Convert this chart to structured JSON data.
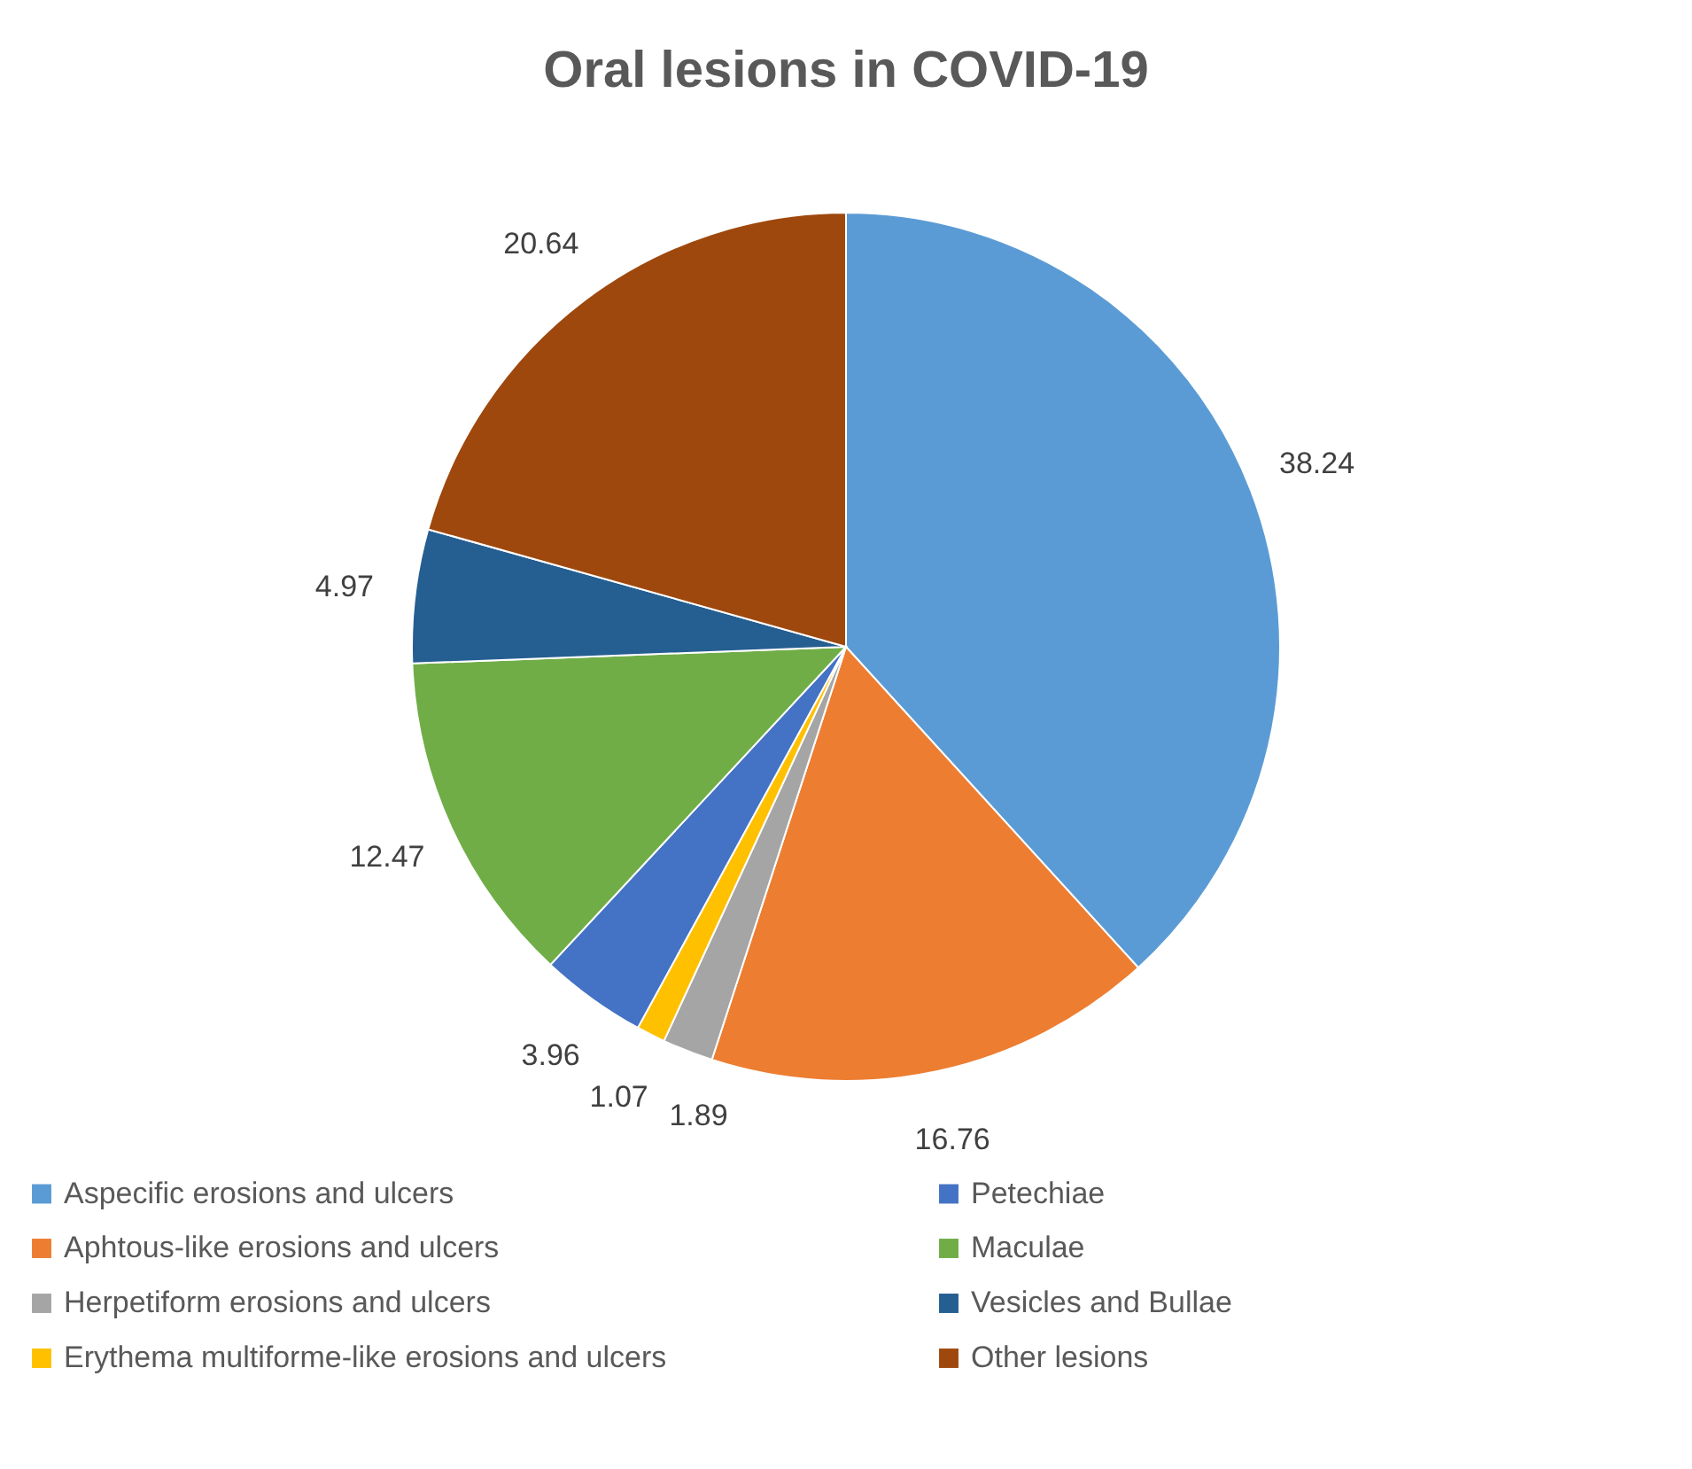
{
  "chart_data": {
    "type": "pie",
    "title": "Oral lesions in COVID-19",
    "categories": [
      "Aspecific erosions and ulcers",
      "Aphtous-like erosions and ulcers",
      "Herpetiform erosions and ulcers",
      "Erythema multiforme-like erosions and ulcers",
      "Petechiae",
      "Maculae",
      "Vesicles and Bullae",
      "Other lesions"
    ],
    "values": [
      38.24,
      16.76,
      1.89,
      1.07,
      3.96,
      12.47,
      4.97,
      20.64
    ],
    "colors": [
      "#5b9bd5",
      "#ed7d31",
      "#a5a5a5",
      "#ffc000",
      "#4472c4",
      "#70ad47",
      "#255e91",
      "#9e480e"
    ],
    "data_labels": true,
    "legend": "bottom"
  }
}
